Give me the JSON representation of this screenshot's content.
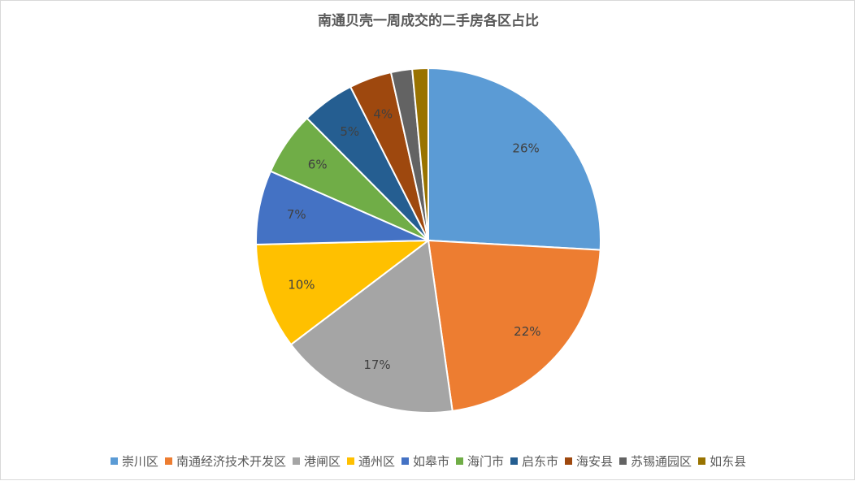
{
  "chart_data": {
    "type": "pie",
    "title": "南通贝壳一周成交的二手房各区占比",
    "categories": [
      "崇川区",
      "南通经济技术开发区",
      "港闸区",
      "通州区",
      "如皋市",
      "海门市",
      "启东市",
      "海安县",
      "苏锡通园区",
      "如东县"
    ],
    "values": [
      26,
      22,
      17,
      10,
      7,
      6,
      5,
      4,
      2,
      1.5
    ],
    "labels": [
      "26%",
      "22%",
      "17%",
      "10%",
      "7%",
      "6%",
      "5%",
      "4%",
      "",
      ""
    ],
    "colors": [
      "#5B9BD5",
      "#ED7D31",
      "#A5A5A5",
      "#FFC000",
      "#4472C4",
      "#70AD47",
      "#255E91",
      "#9E480E",
      "#636363",
      "#997300"
    ],
    "legend_position": "bottom",
    "start_angle": "12 o'clock, clockwise"
  }
}
